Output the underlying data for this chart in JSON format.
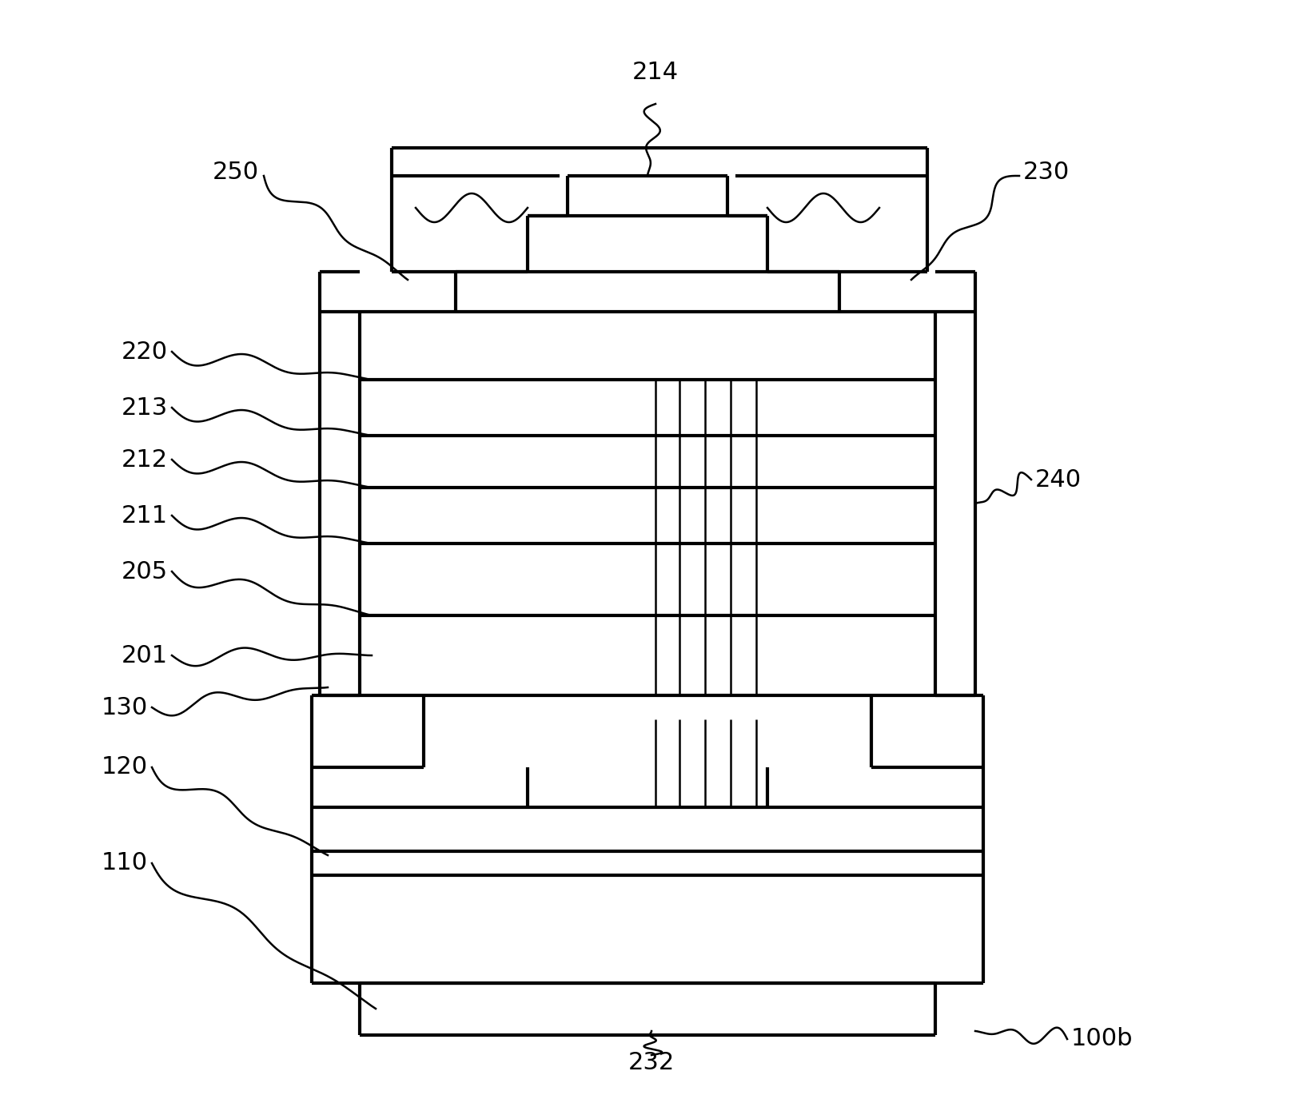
{
  "bg_color": "#ffffff",
  "line_color": "#000000",
  "lw_main": 3.0,
  "lw_thin": 1.8,
  "lw_leader": 1.8,
  "label_fs": 22,
  "fig_w": 16.3,
  "fig_h": 13.75,
  "dpi": 100
}
